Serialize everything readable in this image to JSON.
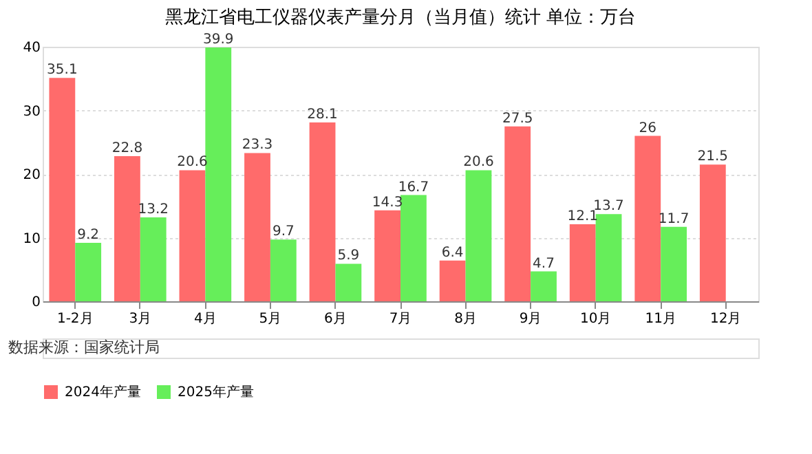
{
  "chart_data": {
    "type": "bar",
    "title": "黑龙江省电工仪器仪表产量分月（当月值）统计  单位：万台",
    "categories": [
      "1-2月",
      "3月",
      "4月",
      "5月",
      "6月",
      "7月",
      "8月",
      "9月",
      "10月",
      "11月",
      "12月"
    ],
    "series": [
      {
        "name": "2024年产量",
        "color": "#ff6b6b",
        "values": [
          35.1,
          22.8,
          20.6,
          23.3,
          28.1,
          14.3,
          6.4,
          27.5,
          12.1,
          26,
          21.5
        ]
      },
      {
        "name": "2025年产量",
        "color": "#66ee5a",
        "values": [
          9.2,
          13.2,
          39.9,
          9.7,
          5.9,
          16.7,
          20.6,
          4.7,
          13.7,
          11.7,
          null
        ]
      }
    ],
    "ylim": [
      0,
      40
    ],
    "yticks": [
      0,
      10,
      20,
      30,
      40
    ],
    "grid": "y",
    "legend": "bottom",
    "data_labels": true,
    "annotations": [
      "数据来源：国家统计局"
    ]
  }
}
